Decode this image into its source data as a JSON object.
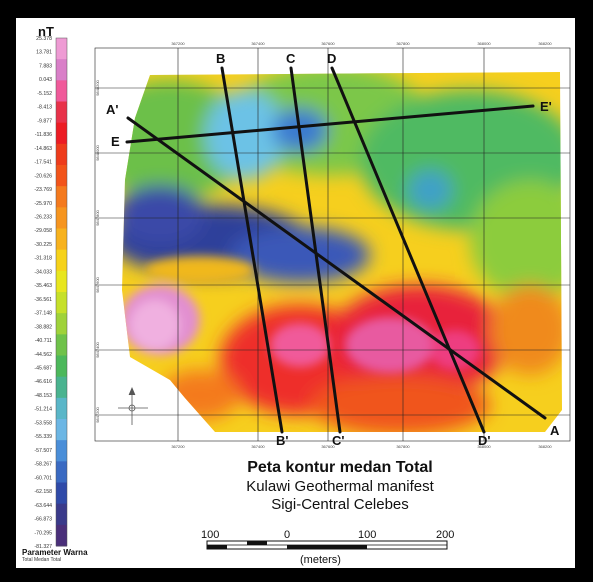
{
  "legend": {
    "unit": "nT",
    "title": "Parameter Warna",
    "subtitle": "Total Medan Total",
    "ticks": [
      "25.378",
      "13.781",
      "7.883",
      "0.043",
      "-5.152",
      "-8.413",
      "-9.877",
      "-11.836",
      "-14.863",
      "-17.541",
      "-20.626",
      "-23.769",
      "-25.970",
      "-26.233",
      "-29.058",
      "-30.225",
      "-31.318",
      "-34.033",
      "-35.463",
      "-36.561",
      "-37.148",
      "-38.882",
      "-40.711",
      "-44.562",
      "-45.687",
      "-46.616",
      "-48.153",
      "-51.214",
      "-53.558",
      "-55.339",
      "-57.507",
      "-58.267",
      "-60.701",
      "-62.158",
      "-63.644",
      "-66.873",
      "-70.295",
      "-81.327"
    ],
    "colors": [
      "#ee9bd4",
      "#d97fc8",
      "#f05a9a",
      "#e8324a",
      "#ec1c24",
      "#ee3c1c",
      "#f2541a",
      "#f47a1e",
      "#f6951f",
      "#f7b21e",
      "#f6d21a",
      "#e8e61f",
      "#c6e02a",
      "#9fd23a",
      "#6fc24a",
      "#4cb85b",
      "#4ab38f",
      "#5ab6c8",
      "#6cb6e4",
      "#4a8ed8",
      "#3a6ac2",
      "#2f4aa8",
      "#3a3a8a",
      "#4a2f7a"
    ]
  },
  "map": {
    "top_ticks": [
      "367200",
      "367400",
      "367600",
      "367800",
      "368000",
      "368200"
    ],
    "bottom_ticks": [
      "367200",
      "367400",
      "367600",
      "367800",
      "368000",
      "368200"
    ],
    "left_ticks": [
      "9848200",
      "9848000",
      "9847800",
      "9847600",
      "9847400",
      "9847200"
    ],
    "profiles": [
      {
        "name": "A-A'",
        "start": "A'",
        "end": "A"
      },
      {
        "name": "B-B'",
        "start": "B",
        "end": "B'"
      },
      {
        "name": "C-C'",
        "start": "C",
        "end": "C'"
      },
      {
        "name": "D-D'",
        "start": "D",
        "end": "D'"
      },
      {
        "name": "E-E'",
        "start": "E",
        "end": "E'"
      }
    ]
  },
  "caption": {
    "line1": "Peta kontur medan Total",
    "line2": "Kulawi Geothermal manifest",
    "line3": "Sigi-Central Celebes"
  },
  "scale": {
    "labels": [
      "100",
      "0",
      "100",
      "200"
    ],
    "unit": "(meters)"
  }
}
